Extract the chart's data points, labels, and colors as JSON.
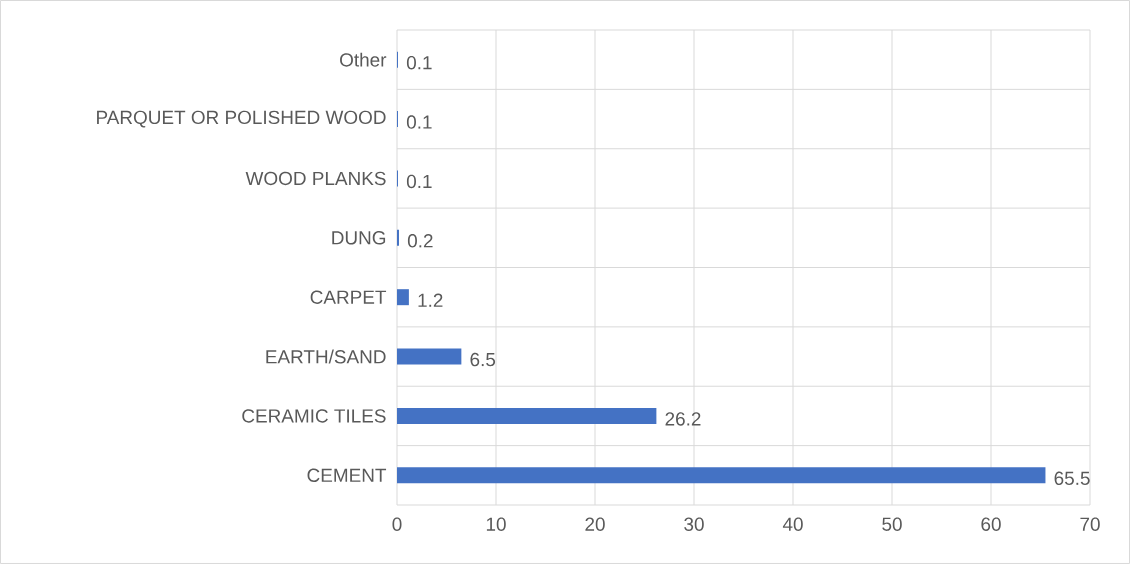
{
  "chart_data": {
    "type": "bar",
    "orientation": "horizontal",
    "categories": [
      "Other",
      "PARQUET OR POLISHED WOOD",
      "WOOD PLANKS",
      "DUNG",
      "CARPET",
      "EARTH/SAND",
      "CERAMIC TILES",
      "CEMENT"
    ],
    "values": [
      0.1,
      0.1,
      0.1,
      0.2,
      1.2,
      6.5,
      26.2,
      65.5
    ],
    "color": "#4472c4",
    "xlim": [
      0,
      70
    ],
    "xticks": [
      0,
      10,
      20,
      30,
      40,
      50,
      60,
      70
    ],
    "grid": true,
    "data_labels": true
  }
}
